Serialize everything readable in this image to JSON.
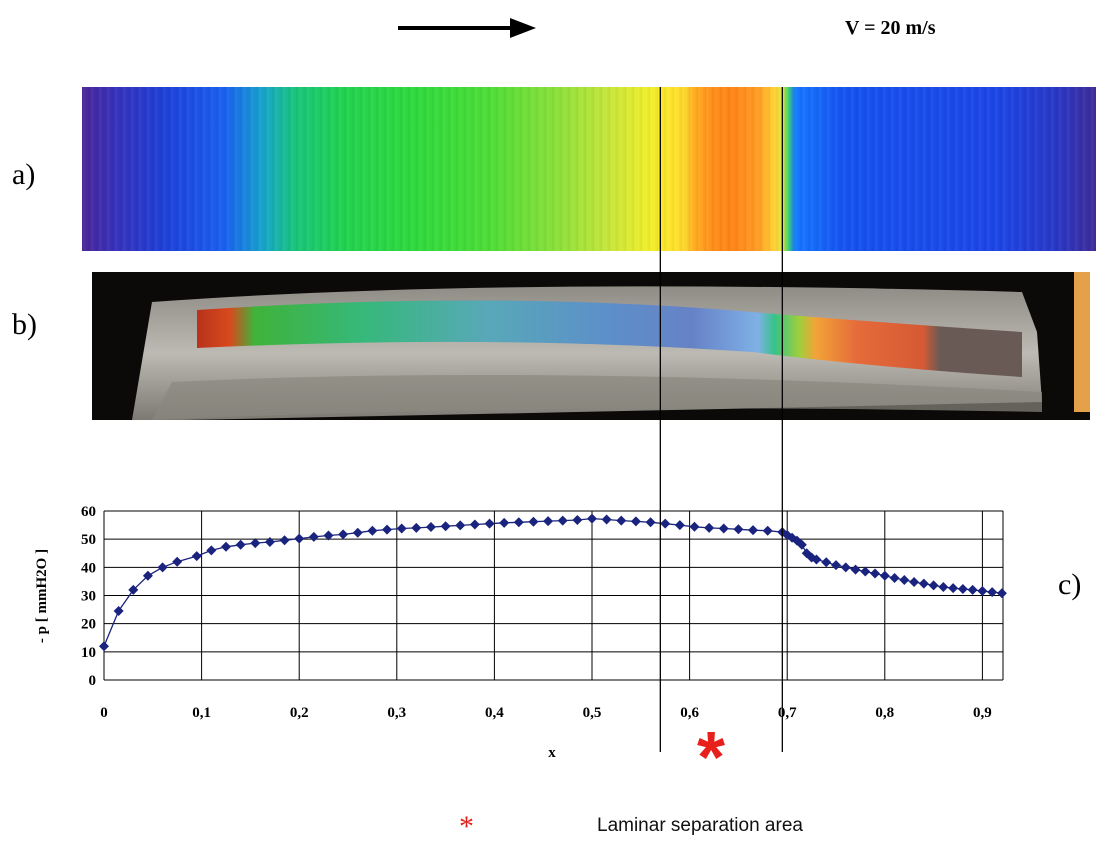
{
  "header": {
    "velocity_label": "V = 20 m/s",
    "flow_direction": "right-arrow"
  },
  "panels": {
    "a_label": "a)",
    "b_label": "b)",
    "c_label": "c)"
  },
  "separation_marker": "*",
  "legend": {
    "star": "*",
    "text": "Laminar separation area",
    "star_color": "#e8201c"
  },
  "chart_data": {
    "type": "line",
    "xlabel": "x",
    "ylabel": "- p  [ mmH2O ]",
    "xlim": [
      0,
      0.92
    ],
    "ylim": [
      0,
      60
    ],
    "x_ticks": [
      "0",
      "0,1",
      "0,2",
      "0,3",
      "0,4",
      "0,5",
      "0,6",
      "0,7",
      "0,8",
      "0,9"
    ],
    "y_ticks": [
      "0",
      "10",
      "20",
      "30",
      "40",
      "50",
      "60"
    ],
    "grid": true,
    "marker": "diamond",
    "series_color": "#1a237e",
    "separation_region_x": [
      0.57,
      0.695
    ],
    "series": [
      {
        "name": "",
        "x": [
          0,
          0.015,
          0.03,
          0.045,
          0.06,
          0.075,
          0.095,
          0.11,
          0.125,
          0.14,
          0.155,
          0.17,
          0.185,
          0.2,
          0.215,
          0.23,
          0.245,
          0.26,
          0.275,
          0.29,
          0.305,
          0.32,
          0.335,
          0.35,
          0.365,
          0.38,
          0.395,
          0.41,
          0.425,
          0.44,
          0.455,
          0.47,
          0.485,
          0.5,
          0.515,
          0.53,
          0.545,
          0.56,
          0.575,
          0.59,
          0.605,
          0.62,
          0.635,
          0.65,
          0.665,
          0.68,
          0.695,
          0.7,
          0.705,
          0.71,
          0.715,
          0.72,
          0.725,
          0.73,
          0.74,
          0.75,
          0.76,
          0.77,
          0.78,
          0.79,
          0.8,
          0.81,
          0.82,
          0.83,
          0.84,
          0.85,
          0.86,
          0.87,
          0.88,
          0.89,
          0.9,
          0.91,
          0.92
        ],
        "values": [
          12,
          24.5,
          32,
          37,
          40,
          42,
          44,
          46,
          47.3,
          48,
          48.6,
          49,
          49.6,
          50.2,
          50.8,
          51.3,
          51.7,
          52.3,
          53,
          53.4,
          53.8,
          54,
          54.3,
          54.6,
          54.9,
          55.2,
          55.5,
          55.8,
          56,
          56.2,
          56.4,
          56.6,
          56.8,
          57.3,
          57,
          56.6,
          56.3,
          56,
          55.5,
          55,
          54.4,
          54,
          53.8,
          53.5,
          53.2,
          53,
          52.5,
          51.5,
          50.5,
          49.5,
          48,
          45,
          43.5,
          42.8,
          41.8,
          40.8,
          40,
          39.2,
          38.5,
          37.8,
          37,
          36.2,
          35.5,
          34.8,
          34.2,
          33.6,
          33,
          32.6,
          32.3,
          32,
          31.6,
          31.2,
          30.8
        ]
      }
    ]
  }
}
